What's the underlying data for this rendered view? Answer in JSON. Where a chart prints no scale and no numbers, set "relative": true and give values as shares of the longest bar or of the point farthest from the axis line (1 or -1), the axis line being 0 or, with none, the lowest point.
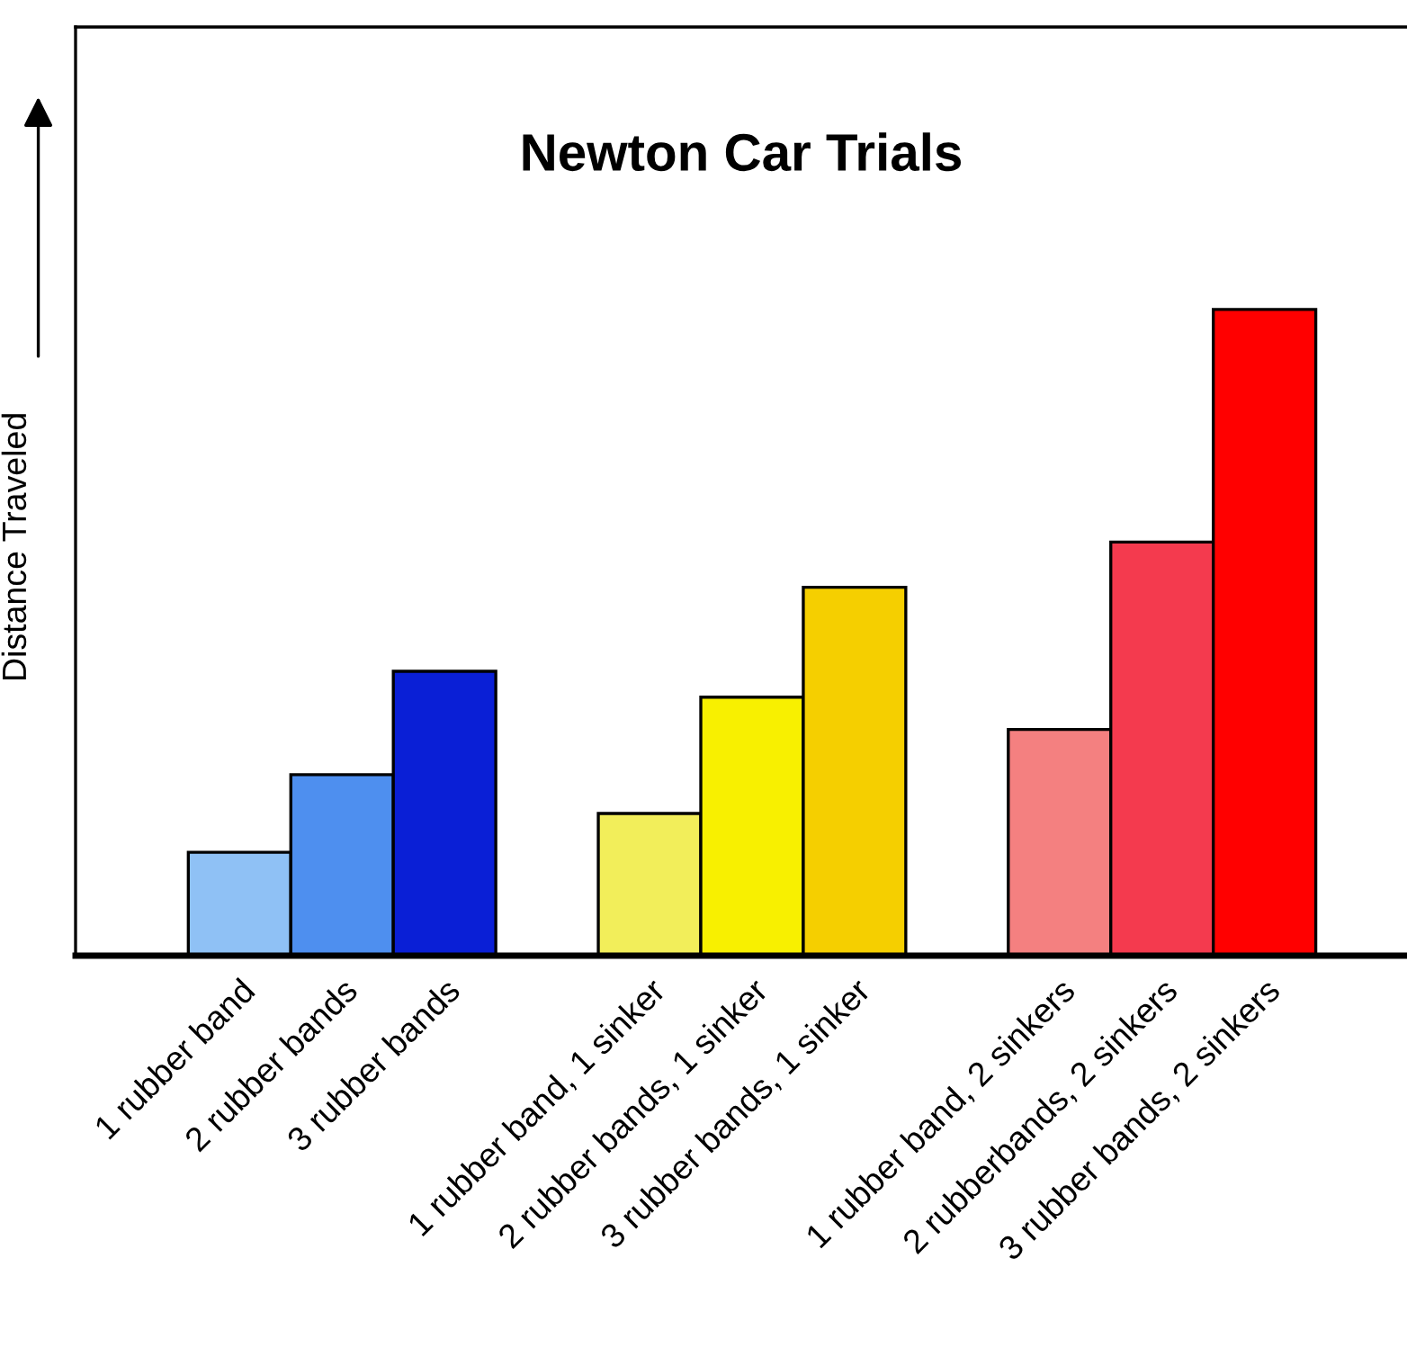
{
  "chart_data": {
    "type": "bar",
    "title": "Newton Car Trials",
    "ylabel": "Distance Traveled",
    "relative": true,
    "categories": [
      "1 rubber band",
      "2 rubber bands",
      "3 rubber bands",
      null,
      "1 rubber band, 1 sinker",
      "2 rubber bands, 1 sinker",
      "3 rubber bands, 1 sinker",
      null,
      "1 rubber band, 2 sinkers",
      "2 rubberbands, 2 sinkers",
      "3 rubber bands, 2 sinkers"
    ],
    "values": [
      0.16,
      0.28,
      0.44,
      null,
      0.22,
      0.4,
      0.57,
      null,
      0.35,
      0.64,
      1.0
    ],
    "colors": [
      "#8fc1f5",
      "#4e8fef",
      "#0a1fd6",
      null,
      "#f2ee5a",
      "#f8f000",
      "#f5cf00",
      null,
      "#f48080",
      "#f43a4e",
      "#ff0000"
    ],
    "grid": false,
    "legend": false
  }
}
